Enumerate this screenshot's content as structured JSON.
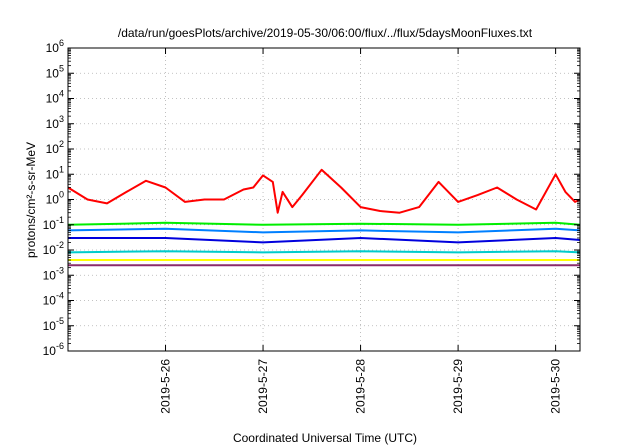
{
  "chart_data": {
    "type": "line",
    "title": "/data/run/goesPlots/archive/2019-05-30/06:00/flux/../flux/5daysMoonFluxes.txt",
    "xlabel": "Coordinated Universal Time (UTC)",
    "ylabel": "protons/cm²-s-sr-MeV",
    "yscale": "log",
    "ylim": [
      1e-06,
      1000000.0
    ],
    "y_tick_exponents": [
      -6,
      -5,
      -4,
      -3,
      -2,
      -1,
      0,
      1,
      2,
      3,
      4,
      5,
      6
    ],
    "xlim": [
      "2019-05-25 00:00",
      "2019-05-30 06:00"
    ],
    "x_ticks": [
      "2019-5-26",
      "2019-5-27",
      "2019-5-28",
      "2019-5-29",
      "2019-5-30"
    ],
    "grid": true,
    "series": [
      {
        "color": "#ff0000",
        "x": [
          "2019-05-25 00:00",
          "2019-05-25 04:48",
          "2019-05-25 09:36",
          "2019-05-25 14:24",
          "2019-05-25 19:12",
          "2019-05-26 00:00",
          "2019-05-26 04:48",
          "2019-05-26 09:36",
          "2019-05-26 14:24",
          "2019-05-26 19:12",
          "2019-05-26 21:36",
          "2019-05-27 00:00",
          "2019-05-27 02:24",
          "2019-05-27 03:36",
          "2019-05-27 04:48",
          "2019-05-27 07:12",
          "2019-05-27 09:36",
          "2019-05-27 14:24",
          "2019-05-27 19:12",
          "2019-05-28 00:00",
          "2019-05-28 04:48",
          "2019-05-28 09:36",
          "2019-05-28 14:24",
          "2019-05-28 19:12",
          "2019-05-29 00:00",
          "2019-05-29 04:48",
          "2019-05-29 09:36",
          "2019-05-29 14:24",
          "2019-05-29 19:12",
          "2019-05-30 00:00",
          "2019-05-30 02:24",
          "2019-05-30 04:48",
          "2019-05-30 06:00"
        ],
        "y": [
          3,
          1,
          0.7,
          2,
          5.5,
          3,
          0.8,
          1,
          1,
          2.5,
          3,
          9,
          5,
          0.3,
          2,
          0.5,
          1.5,
          15,
          3,
          0.5,
          0.35,
          0.3,
          0.5,
          5,
          0.8,
          1.5,
          3,
          1,
          0.4,
          10,
          2,
          0.8,
          1
        ]
      },
      {
        "color": "#00ee00",
        "x": [
          "2019-05-25 00:00",
          "2019-05-26 00:00",
          "2019-05-27 00:00",
          "2019-05-28 00:00",
          "2019-05-29 00:00",
          "2019-05-30 00:00",
          "2019-05-30 06:00"
        ],
        "y": [
          0.1,
          0.12,
          0.1,
          0.11,
          0.1,
          0.12,
          0.1
        ]
      },
      {
        "color": "#0080ff",
        "x": [
          "2019-05-25 00:00",
          "2019-05-26 00:00",
          "2019-05-27 00:00",
          "2019-05-28 00:00",
          "2019-05-29 00:00",
          "2019-05-30 00:00",
          "2019-05-30 06:00"
        ],
        "y": [
          0.06,
          0.07,
          0.05,
          0.06,
          0.05,
          0.07,
          0.06
        ]
      },
      {
        "color": "#0000dd",
        "x": [
          "2019-05-25 00:00",
          "2019-05-26 00:00",
          "2019-05-27 00:00",
          "2019-05-28 00:00",
          "2019-05-29 00:00",
          "2019-05-30 00:00",
          "2019-05-30 06:00"
        ],
        "y": [
          0.03,
          0.03,
          0.02,
          0.03,
          0.02,
          0.03,
          0.025
        ]
      },
      {
        "color": "#00cccc",
        "x": [
          "2019-05-25 00:00",
          "2019-05-26 00:00",
          "2019-05-27 00:00",
          "2019-05-28 00:00",
          "2019-05-29 00:00",
          "2019-05-30 00:00",
          "2019-05-30 06:00"
        ],
        "y": [
          0.008,
          0.009,
          0.008,
          0.009,
          0.008,
          0.009,
          0.008
        ]
      },
      {
        "color": "#ffff00",
        "x": [
          "2019-05-25 00:00",
          "2019-05-26 00:00",
          "2019-05-27 00:00",
          "2019-05-28 00:00",
          "2019-05-29 00:00",
          "2019-05-30 00:00",
          "2019-05-30 06:00"
        ],
        "y": [
          0.004,
          0.004,
          0.004,
          0.004,
          0.004,
          0.004,
          0.004
        ]
      },
      {
        "color": "#8b2c6b",
        "x": [
          "2019-05-25 00:00",
          "2019-05-26 00:00",
          "2019-05-27 00:00",
          "2019-05-28 00:00",
          "2019-05-29 00:00",
          "2019-05-30 00:00",
          "2019-05-30 06:00"
        ],
        "y": [
          0.0025,
          0.0025,
          0.0025,
          0.0025,
          0.0025,
          0.0025,
          0.0025
        ]
      }
    ]
  }
}
